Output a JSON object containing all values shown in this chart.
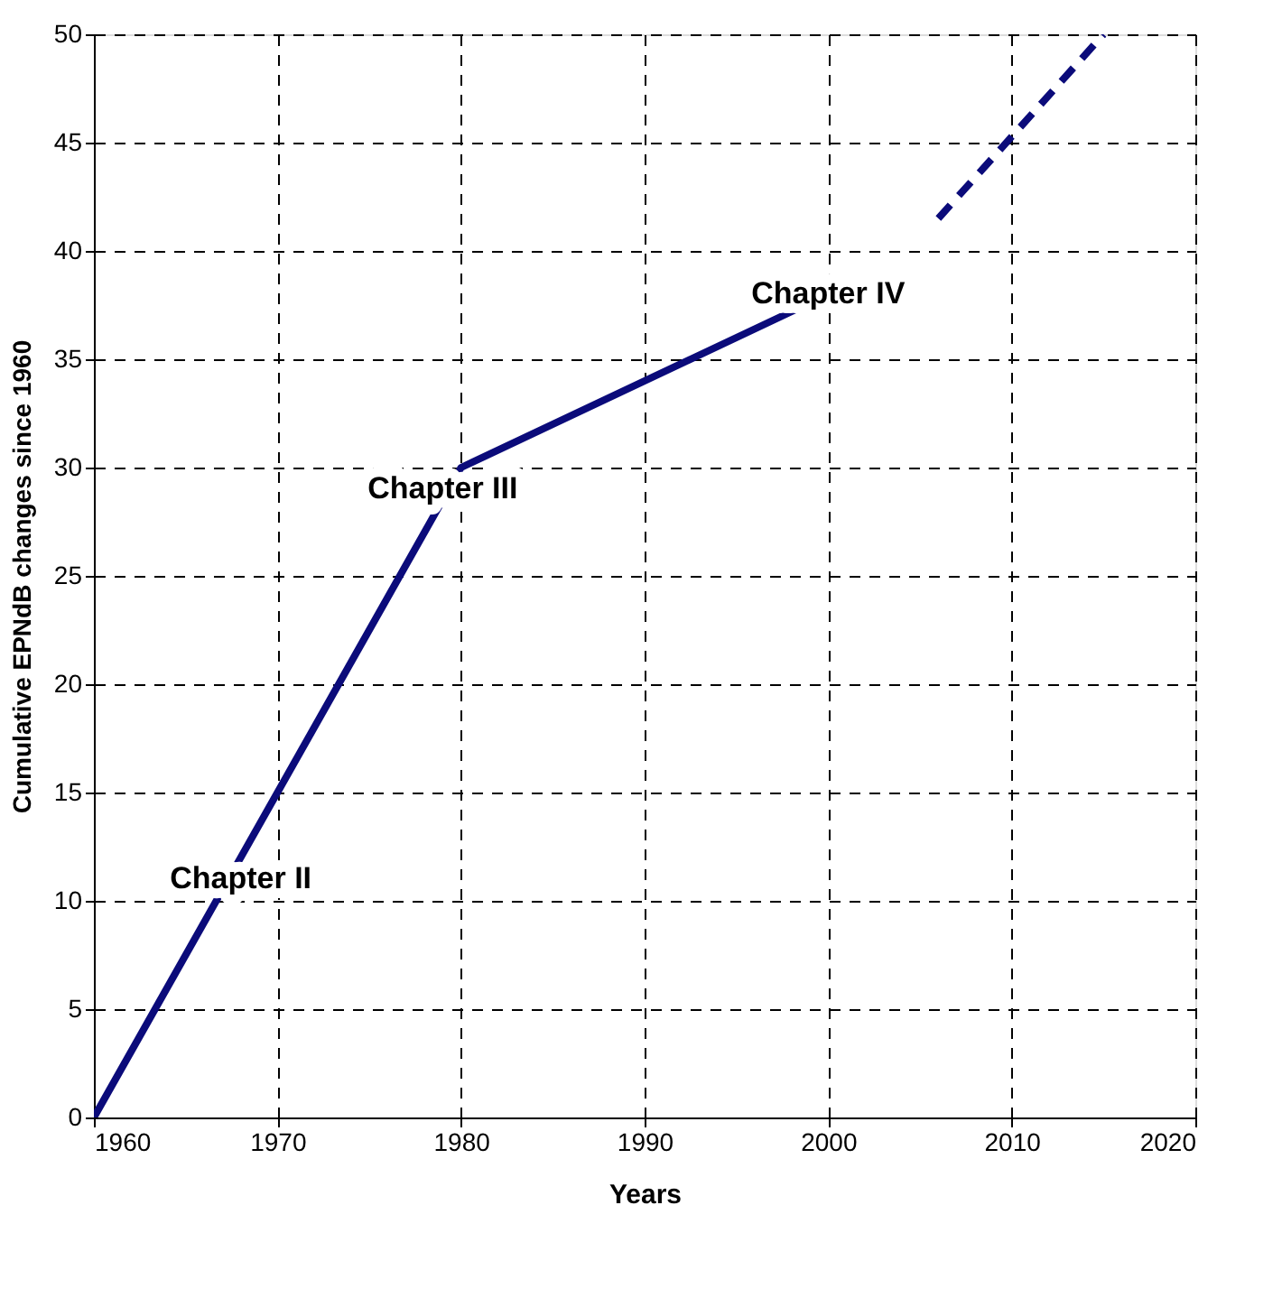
{
  "chart_data": {
    "type": "line",
    "xlabel": "Years",
    "ylabel": "Cumulative EPNdB  changes since 1960",
    "xlim": [
      1960,
      2020
    ],
    "xticks": [
      1960,
      1970,
      1980,
      1990,
      2000,
      2010,
      2020
    ],
    "ylim": [
      0,
      50
    ],
    "yticks": [
      0,
      5,
      10,
      15,
      20,
      25,
      30,
      35,
      40,
      45,
      50
    ],
    "grid": true,
    "marker": "none",
    "series": [
      {
        "color": "#0b0b7a",
        "x": [
          1960,
          1980,
          2000
        ],
        "values": [
          0,
          30,
          38
        ],
        "line_style": "solid"
      },
      {
        "color": "#0b0b7a",
        "x": [
          2006,
          2015
        ],
        "values": [
          41.5,
          50
        ],
        "line_style": "dashed"
      }
    ],
    "annotations": [
      {
        "text": "Chapter II",
        "x": 1968,
        "y": 11
      },
      {
        "text": "Chapter III",
        "x": 1979,
        "y": 29
      },
      {
        "text": "Chapter IV",
        "x": 2000,
        "y": 38
      }
    ]
  }
}
